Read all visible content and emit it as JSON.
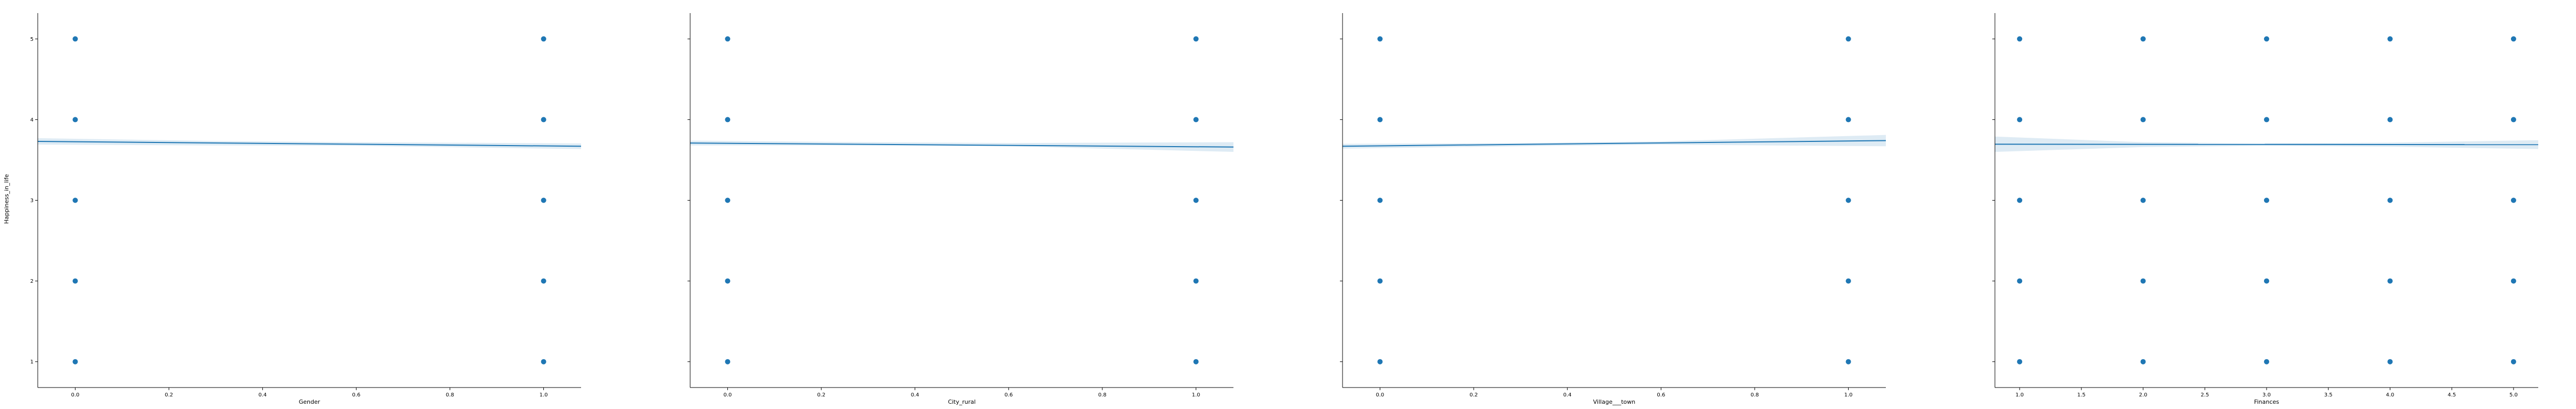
{
  "shared_y": {
    "label": "Happiness_in_life",
    "ticks": [
      1,
      2,
      3,
      4,
      5
    ],
    "range": [
      0.68,
      5.32
    ]
  },
  "chart_data": [
    {
      "type": "scatter",
      "xlabel": "Gender",
      "ylabel": "Happiness_in_life",
      "xlim": [
        -0.08,
        1.08
      ],
      "ylim": [
        0.68,
        5.32
      ],
      "xticks": [
        "0.0",
        "0.2",
        "0.4",
        "0.6",
        "0.8",
        "1.0"
      ],
      "xtick_values": [
        0,
        0.2,
        0.4,
        0.6,
        0.8,
        1.0
      ],
      "points": [
        {
          "x": 0,
          "y": 1
        },
        {
          "x": 0,
          "y": 2
        },
        {
          "x": 0,
          "y": 3
        },
        {
          "x": 0,
          "y": 4
        },
        {
          "x": 0,
          "y": 5
        },
        {
          "x": 1,
          "y": 1
        },
        {
          "x": 1,
          "y": 2
        },
        {
          "x": 1,
          "y": 3
        },
        {
          "x": 1,
          "y": 4
        },
        {
          "x": 1,
          "y": 5
        }
      ],
      "regression": {
        "x": [
          -0.08,
          1.08
        ],
        "y": [
          3.73,
          3.67
        ]
      },
      "ci": {
        "x": [
          -0.08,
          0.3,
          0.6,
          1.08
        ],
        "lower": [
          3.69,
          3.68,
          3.675,
          3.635
        ],
        "upper": [
          3.77,
          3.735,
          3.72,
          3.705
        ]
      },
      "grid": false
    },
    {
      "type": "scatter",
      "xlabel": "City_rural",
      "ylabel": "",
      "xlim": [
        -0.08,
        1.08
      ],
      "ylim": [
        0.68,
        5.32
      ],
      "xticks": [
        "0.0",
        "0.2",
        "0.4",
        "0.6",
        "0.8",
        "1.0"
      ],
      "xtick_values": [
        0,
        0.2,
        0.4,
        0.6,
        0.8,
        1.0
      ],
      "points": [
        {
          "x": 0,
          "y": 1
        },
        {
          "x": 0,
          "y": 2
        },
        {
          "x": 0,
          "y": 3
        },
        {
          "x": 0,
          "y": 4
        },
        {
          "x": 0,
          "y": 5
        },
        {
          "x": 1,
          "y": 1
        },
        {
          "x": 1,
          "y": 2
        },
        {
          "x": 1,
          "y": 3
        },
        {
          "x": 1,
          "y": 4
        },
        {
          "x": 1,
          "y": 5
        }
      ],
      "regression": {
        "x": [
          -0.08,
          1.08
        ],
        "y": [
          3.71,
          3.66
        ]
      },
      "ci": {
        "x": [
          -0.08,
          0.3,
          0.6,
          1.08
        ],
        "lower": [
          3.68,
          3.68,
          3.67,
          3.6
        ],
        "upper": [
          3.74,
          3.72,
          3.71,
          3.72
        ]
      },
      "grid": false
    },
    {
      "type": "scatter",
      "xlabel": "Village___town",
      "ylabel": "",
      "xlim": [
        -0.08,
        1.08
      ],
      "ylim": [
        0.68,
        5.32
      ],
      "xticks": [
        "0.0",
        "0.2",
        "0.4",
        "0.6",
        "0.8",
        "1.0"
      ],
      "xtick_values": [
        0,
        0.2,
        0.4,
        0.6,
        0.8,
        1.0
      ],
      "points": [
        {
          "x": 0,
          "y": 1
        },
        {
          "x": 0,
          "y": 2
        },
        {
          "x": 0,
          "y": 3
        },
        {
          "x": 0,
          "y": 4
        },
        {
          "x": 0,
          "y": 5
        },
        {
          "x": 1,
          "y": 1
        },
        {
          "x": 1,
          "y": 2
        },
        {
          "x": 1,
          "y": 3
        },
        {
          "x": 1,
          "y": 4
        },
        {
          "x": 1,
          "y": 5
        }
      ],
      "regression": {
        "x": [
          -0.08,
          1.08
        ],
        "y": [
          3.67,
          3.74
        ]
      },
      "ci": {
        "x": [
          -0.08,
          0.3,
          0.6,
          1.08
        ],
        "lower": [
          3.64,
          3.67,
          3.69,
          3.67
        ],
        "upper": [
          3.7,
          3.71,
          3.73,
          3.81
        ]
      },
      "grid": false
    },
    {
      "type": "scatter",
      "xlabel": "Finances",
      "ylabel": "",
      "xlim": [
        0.8,
        5.2
      ],
      "ylim": [
        0.68,
        5.32
      ],
      "xticks": [
        "1.0",
        "1.5",
        "2.0",
        "2.5",
        "3.0",
        "3.5",
        "4.0",
        "4.5",
        "5.0"
      ],
      "xtick_values": [
        1.0,
        1.5,
        2.0,
        2.5,
        3.0,
        3.5,
        4.0,
        4.5,
        5.0
      ],
      "points": [
        {
          "x": 1,
          "y": 1
        },
        {
          "x": 1,
          "y": 2
        },
        {
          "x": 1,
          "y": 3
        },
        {
          "x": 1,
          "y": 4
        },
        {
          "x": 1,
          "y": 5
        },
        {
          "x": 2,
          "y": 1
        },
        {
          "x": 2,
          "y": 2
        },
        {
          "x": 2,
          "y": 3
        },
        {
          "x": 2,
          "y": 4
        },
        {
          "x": 2,
          "y": 5
        },
        {
          "x": 3,
          "y": 1
        },
        {
          "x": 3,
          "y": 2
        },
        {
          "x": 3,
          "y": 3
        },
        {
          "x": 3,
          "y": 4
        },
        {
          "x": 3,
          "y": 5
        },
        {
          "x": 4,
          "y": 1
        },
        {
          "x": 4,
          "y": 2
        },
        {
          "x": 4,
          "y": 3
        },
        {
          "x": 4,
          "y": 4
        },
        {
          "x": 4,
          "y": 5
        },
        {
          "x": 5,
          "y": 1
        },
        {
          "x": 5,
          "y": 2
        },
        {
          "x": 5,
          "y": 3
        },
        {
          "x": 5,
          "y": 4
        },
        {
          "x": 5,
          "y": 5
        }
      ],
      "regression": {
        "x": [
          0.8,
          5.2
        ],
        "y": [
          3.695,
          3.69
        ]
      },
      "ci": {
        "x": [
          0.8,
          2.0,
          3.0,
          4.0,
          5.2
        ],
        "lower": [
          3.6,
          3.66,
          3.675,
          3.665,
          3.635
        ],
        "upper": [
          3.79,
          3.72,
          3.705,
          3.715,
          3.745
        ]
      },
      "grid": false
    }
  ],
  "colors": {
    "point": "#1f77b4",
    "line": "#1f77b4",
    "band": "#1f77b4",
    "axis": "#000000"
  }
}
